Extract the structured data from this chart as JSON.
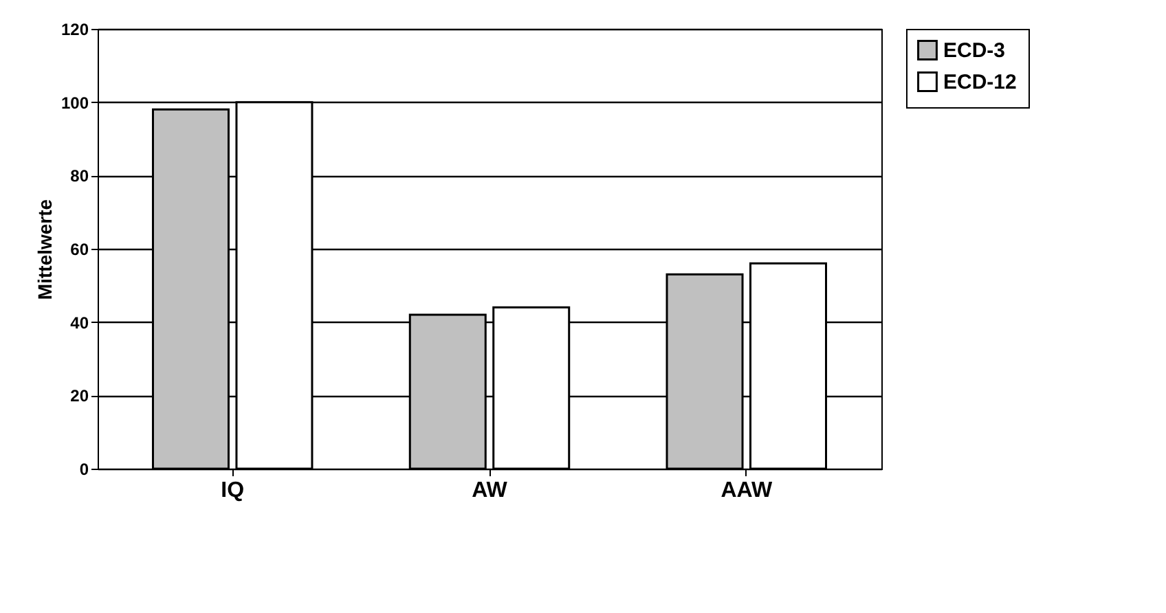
{
  "chart_data": {
    "type": "bar",
    "ylabel": "Mittelwerte",
    "categories": [
      "IQ",
      "AW",
      "AAW"
    ],
    "series": [
      {
        "name": "ECD-3",
        "color": "#c0c0c0",
        "values": [
          98,
          42,
          53
        ]
      },
      {
        "name": "ECD-12",
        "color": "#ffffff",
        "values": [
          100,
          44,
          56
        ]
      }
    ],
    "ylim": [
      0,
      120
    ],
    "yticks": [
      0,
      20,
      40,
      60,
      80,
      100,
      120
    ],
    "grid": "y",
    "legend": "right"
  }
}
